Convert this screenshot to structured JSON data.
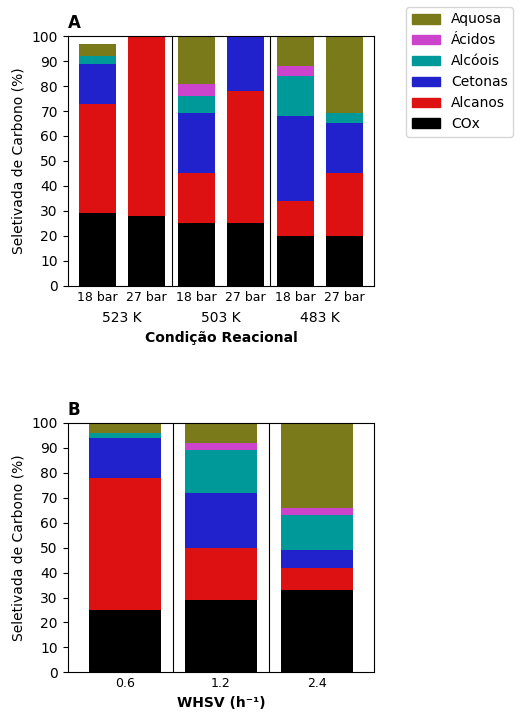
{
  "chart_data": [
    {
      "type": "bar",
      "title": "A",
      "stacked": true,
      "categories": [
        "18 bar",
        "27 bar",
        "18 bar",
        "27 bar",
        "18 bar",
        "27 bar"
      ],
      "groups": [
        "523 K",
        "503 K",
        "483 K"
      ],
      "xlabel": "Condição Reacional",
      "ylabel": "Seletivada de Carbono (%)",
      "ylim": [
        0,
        100
      ],
      "yticks": [
        0,
        10,
        20,
        30,
        40,
        50,
        60,
        70,
        80,
        90,
        100
      ],
      "legend": "upper right",
      "series": [
        {
          "name": "COx",
          "color": "#000000",
          "values": [
            29,
            28,
            25,
            25,
            20,
            20
          ]
        },
        {
          "name": "Alcanos",
          "color": "#dd1111",
          "values": [
            44,
            72,
            20,
            53,
            14,
            25
          ]
        },
        {
          "name": "Cetonas",
          "color": "#2222cc",
          "values": [
            16,
            0,
            24,
            22,
            34,
            20
          ]
        },
        {
          "name": "Alcóois",
          "color": "#009999",
          "values": [
            3,
            0,
            7,
            0,
            16,
            4
          ]
        },
        {
          "name": "Ácidos",
          "color": "#cc44cc",
          "values": [
            0,
            0,
            5,
            0,
            4,
            0
          ]
        },
        {
          "name": "Aquosa",
          "color": "#7a7a1a",
          "values": [
            5,
            0,
            19,
            0,
            12,
            31
          ]
        }
      ]
    },
    {
      "type": "bar",
      "title": "B",
      "stacked": true,
      "categories": [
        "0.6",
        "1.2",
        "2.4"
      ],
      "xlabel": "WHSV (h⁻¹)",
      "ylabel": "Seletivada de Carbono (%)",
      "ylim": [
        0,
        100
      ],
      "yticks": [
        0,
        10,
        20,
        30,
        40,
        50,
        60,
        70,
        80,
        90,
        100
      ],
      "series": [
        {
          "name": "COx",
          "color": "#000000",
          "values": [
            25,
            29,
            33
          ]
        },
        {
          "name": "Alcanos",
          "color": "#dd1111",
          "values": [
            53,
            21,
            9
          ]
        },
        {
          "name": "Cetonas",
          "color": "#2222cc",
          "values": [
            16,
            22,
            7
          ]
        },
        {
          "name": "Alcóois",
          "color": "#009999",
          "values": [
            2,
            17,
            14
          ]
        },
        {
          "name": "Ácidos",
          "color": "#cc44cc",
          "values": [
            0,
            3,
            3
          ]
        },
        {
          "name": "Aquosa",
          "color": "#7a7a1a",
          "values": [
            4,
            8,
            34
          ]
        }
      ]
    }
  ]
}
